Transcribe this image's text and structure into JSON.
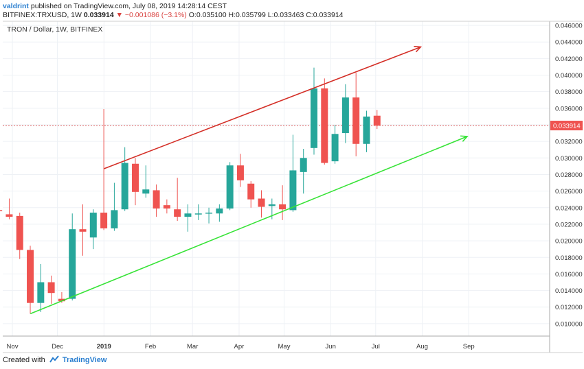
{
  "header": {
    "author": "valdrint",
    "published_text": "published on TradingView.com, July 08, 2019 14:28:14 CEST",
    "symbol": "BITFINEX:TRXUSD, 1W",
    "last": "0.033914",
    "change_arrow": "▼",
    "change": "−0.001086 (−3.1%)",
    "ohlc": "O:0.035100 H:0.035799 L:0.033463 C:0.033914"
  },
  "footer": {
    "created_with": "Created with",
    "brand": "TradingView"
  },
  "colors": {
    "up": "#26a69a",
    "down": "#ef5350",
    "upper_trend": "#d42f27",
    "lower_trend": "#37e337",
    "price_line": "#e06666",
    "grid": "#eef1f5",
    "axis": "#a9a9a9"
  },
  "chart_data": {
    "type": "candlestick",
    "title": "TRON / Dollar, 1W, BITFINEX",
    "ylim": [
      0.0085,
      0.0465
    ],
    "y_ticks": [
      "0.010000",
      "0.012000",
      "0.014000",
      "0.016000",
      "0.018000",
      "0.020000",
      "0.022000",
      "0.024000",
      "0.026000",
      "0.028000",
      "0.030000",
      "0.032000",
      "0.034000",
      "0.036000",
      "0.038000",
      "0.040000",
      "0.042000",
      "0.044000",
      "0.046000"
    ],
    "x_ticks": [
      {
        "label": "Nov",
        "date": "2018-11-01"
      },
      {
        "label": "Dec",
        "date": "2018-12-01"
      },
      {
        "label": "2019",
        "date": "2019-01-01",
        "bold": true
      },
      {
        "label": "Feb",
        "date": "2019-02-01"
      },
      {
        "label": "Mar",
        "date": "2019-03-01"
      },
      {
        "label": "Apr",
        "date": "2019-04-01"
      },
      {
        "label": "May",
        "date": "2019-05-01"
      },
      {
        "label": "Jun",
        "date": "2019-06-01"
      },
      {
        "label": "Jul",
        "date": "2019-07-01"
      },
      {
        "label": "Aug",
        "date": "2019-08-01"
      },
      {
        "label": "Sep",
        "date": "2019-09-01"
      }
    ],
    "current_price": "0.033914",
    "candles": [
      {
        "date": "2018-10-22",
        "o": 0.0237,
        "h": 0.0242,
        "l": 0.0234,
        "c": 0.0236
      },
      {
        "date": "2018-10-29",
        "o": 0.0232,
        "h": 0.0251,
        "l": 0.0226,
        "c": 0.0229
      },
      {
        "date": "2018-11-05",
        "o": 0.023,
        "h": 0.0234,
        "l": 0.0178,
        "c": 0.0189
      },
      {
        "date": "2018-11-12",
        "o": 0.0189,
        "h": 0.0194,
        "l": 0.0112,
        "c": 0.0125
      },
      {
        "date": "2018-11-19",
        "o": 0.0125,
        "h": 0.0172,
        "l": 0.0114,
        "c": 0.015
      },
      {
        "date": "2018-11-26",
        "o": 0.015,
        "h": 0.0158,
        "l": 0.0124,
        "c": 0.0137
      },
      {
        "date": "2018-12-03",
        "o": 0.013,
        "h": 0.0138,
        "l": 0.0125,
        "c": 0.0127
      },
      {
        "date": "2018-12-10",
        "o": 0.013,
        "h": 0.0233,
        "l": 0.0128,
        "c": 0.0214
      },
      {
        "date": "2018-12-17",
        "o": 0.0214,
        "h": 0.0244,
        "l": 0.0182,
        "c": 0.0211
      },
      {
        "date": "2018-12-24",
        "o": 0.0204,
        "h": 0.0238,
        "l": 0.019,
        "c": 0.0234
      },
      {
        "date": "2018-12-31",
        "o": 0.0234,
        "h": 0.0359,
        "l": 0.0213,
        "c": 0.0215
      },
      {
        "date": "2019-01-07",
        "o": 0.0215,
        "h": 0.027,
        "l": 0.0212,
        "c": 0.0237
      },
      {
        "date": "2019-01-14",
        "o": 0.0238,
        "h": 0.0313,
        "l": 0.0236,
        "c": 0.0294
      },
      {
        "date": "2019-01-21",
        "o": 0.0293,
        "h": 0.03,
        "l": 0.0243,
        "c": 0.0259
      },
      {
        "date": "2019-01-28",
        "o": 0.0257,
        "h": 0.0291,
        "l": 0.0252,
        "c": 0.0262
      },
      {
        "date": "2019-02-04",
        "o": 0.0261,
        "h": 0.0268,
        "l": 0.0229,
        "c": 0.0239
      },
      {
        "date": "2019-02-11",
        "o": 0.0243,
        "h": 0.025,
        "l": 0.0233,
        "c": 0.0239
      },
      {
        "date": "2019-02-18",
        "o": 0.0238,
        "h": 0.0276,
        "l": 0.0224,
        "c": 0.0229
      },
      {
        "date": "2019-02-25",
        "o": 0.0229,
        "h": 0.0244,
        "l": 0.0211,
        "c": 0.0233
      },
      {
        "date": "2019-03-04",
        "o": 0.0233,
        "h": 0.0244,
        "l": 0.0225,
        "c": 0.0233
      },
      {
        "date": "2019-03-11",
        "o": 0.0233,
        "h": 0.024,
        "l": 0.0221,
        "c": 0.0234
      },
      {
        "date": "2019-03-18",
        "o": 0.0233,
        "h": 0.0244,
        "l": 0.0223,
        "c": 0.0239
      },
      {
        "date": "2019-03-25",
        "o": 0.0239,
        "h": 0.0295,
        "l": 0.0237,
        "c": 0.0291
      },
      {
        "date": "2019-04-01",
        "o": 0.0291,
        "h": 0.0305,
        "l": 0.0265,
        "c": 0.0273
      },
      {
        "date": "2019-04-08",
        "o": 0.0269,
        "h": 0.0272,
        "l": 0.024,
        "c": 0.025
      },
      {
        "date": "2019-04-15",
        "o": 0.0251,
        "h": 0.0261,
        "l": 0.0228,
        "c": 0.0241
      },
      {
        "date": "2019-04-22",
        "o": 0.0242,
        "h": 0.0251,
        "l": 0.0226,
        "c": 0.0244
      },
      {
        "date": "2019-04-29",
        "o": 0.0244,
        "h": 0.0267,
        "l": 0.0225,
        "c": 0.0238
      },
      {
        "date": "2019-05-06",
        "o": 0.0237,
        "h": 0.0328,
        "l": 0.0235,
        "c": 0.0285
      },
      {
        "date": "2019-05-13",
        "o": 0.0283,
        "h": 0.0311,
        "l": 0.0257,
        "c": 0.03
      },
      {
        "date": "2019-05-20",
        "o": 0.0312,
        "h": 0.0409,
        "l": 0.0304,
        "c": 0.0384
      },
      {
        "date": "2019-05-27",
        "o": 0.0384,
        "h": 0.0396,
        "l": 0.0292,
        "c": 0.0294
      },
      {
        "date": "2019-06-03",
        "o": 0.0296,
        "h": 0.034,
        "l": 0.0293,
        "c": 0.0329
      },
      {
        "date": "2019-06-10",
        "o": 0.033,
        "h": 0.0389,
        "l": 0.0318,
        "c": 0.0373
      },
      {
        "date": "2019-06-17",
        "o": 0.0373,
        "h": 0.0403,
        "l": 0.0302,
        "c": 0.0317
      },
      {
        "date": "2019-06-24",
        "o": 0.0317,
        "h": 0.0357,
        "l": 0.0307,
        "c": 0.035
      },
      {
        "date": "2019-07-01",
        "o": 0.0351,
        "h": 0.0358,
        "l": 0.0335,
        "c": 0.0339
      }
    ],
    "trendlines": [
      {
        "name": "upper",
        "color": "#d42f27",
        "from": {
          "date": "2019-01-01",
          "y": 0.0287
        },
        "to": {
          "date": "2019-07-31",
          "y": 0.0434
        }
      },
      {
        "name": "lower",
        "color": "#37e337",
        "from": {
          "date": "2018-11-13",
          "y": 0.0112
        },
        "to": {
          "date": "2019-08-31",
          "y": 0.0326
        }
      }
    ]
  }
}
